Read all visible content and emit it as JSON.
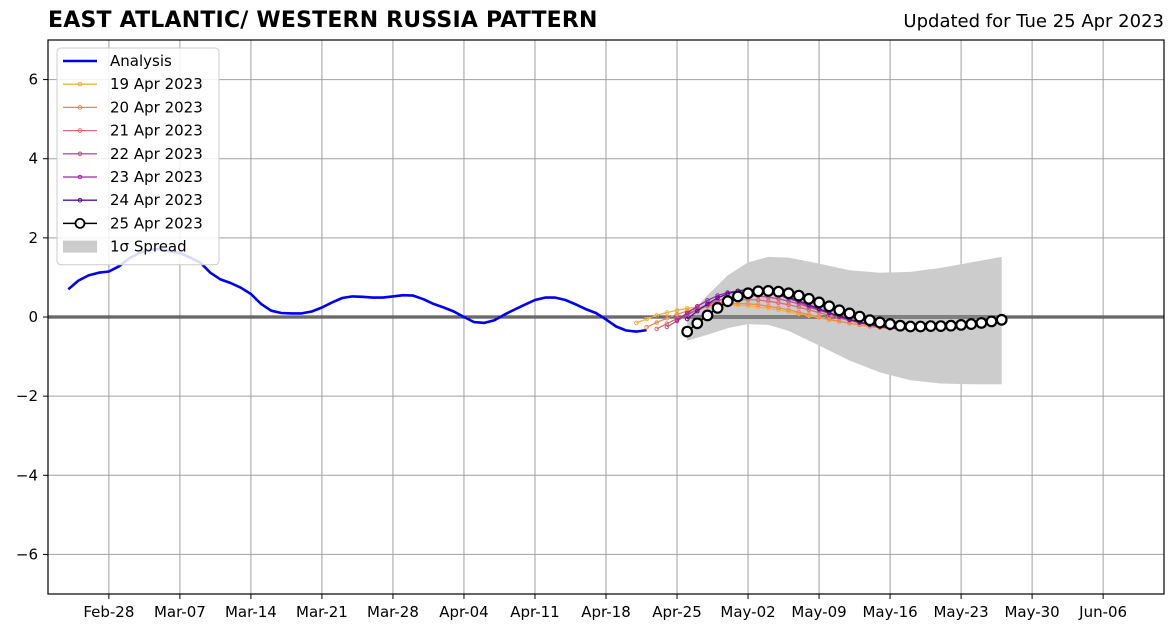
{
  "title": "EAST ATLANTIC/ WESTERN RUSSIA PATTERN",
  "subtitle": "Updated for Tue 25 Apr 2023",
  "chart_data": {
    "type": "line",
    "title": "EAST ATLANTIC/ WESTERN RUSSIA PATTERN",
    "subtitle": "Updated for Tue 25 Apr 2023",
    "xlabel": "",
    "ylabel": "",
    "x_is_date": true,
    "xlim": [
      "2023-02-22",
      "2023-06-12"
    ],
    "ylim": [
      -7,
      7
    ],
    "grid": true,
    "legend_position": "top-left",
    "x_ticks": [
      {
        "date": "2023-02-28",
        "label": "Feb-28"
      },
      {
        "date": "2023-03-07",
        "label": "Mar-07"
      },
      {
        "date": "2023-03-14",
        "label": "Mar-14"
      },
      {
        "date": "2023-03-21",
        "label": "Mar-21"
      },
      {
        "date": "2023-03-28",
        "label": "Mar-28"
      },
      {
        "date": "2023-04-04",
        "label": "Apr-04"
      },
      {
        "date": "2023-04-11",
        "label": "Apr-11"
      },
      {
        "date": "2023-04-18",
        "label": "Apr-18"
      },
      {
        "date": "2023-04-25",
        "label": "Apr-25"
      },
      {
        "date": "2023-05-02",
        "label": "May-02"
      },
      {
        "date": "2023-05-09",
        "label": "May-09"
      },
      {
        "date": "2023-05-16",
        "label": "May-16"
      },
      {
        "date": "2023-05-23",
        "label": "May-23"
      },
      {
        "date": "2023-05-30",
        "label": "May-30"
      },
      {
        "date": "2023-06-06",
        "label": "Jun-06"
      }
    ],
    "y_ticks": [
      {
        "value": -6,
        "label": "−6"
      },
      {
        "value": -4,
        "label": "−4"
      },
      {
        "value": -2,
        "label": "−2"
      },
      {
        "value": 0,
        "label": "0"
      },
      {
        "value": 2,
        "label": "2"
      },
      {
        "value": 4,
        "label": "4"
      },
      {
        "value": 6,
        "label": "6"
      }
    ],
    "analysis": {
      "name": "Analysis",
      "color": "#0000ee",
      "x": [
        "2023-02-24",
        "2023-02-25",
        "2023-02-26",
        "2023-02-27",
        "2023-02-28",
        "2023-03-01",
        "2023-03-02",
        "2023-03-03",
        "2023-03-04",
        "2023-03-05",
        "2023-03-06",
        "2023-03-07",
        "2023-03-08",
        "2023-03-09",
        "2023-03-10",
        "2023-03-11",
        "2023-03-12",
        "2023-03-13",
        "2023-03-14",
        "2023-03-15",
        "2023-03-16",
        "2023-03-17",
        "2023-03-18",
        "2023-03-19",
        "2023-03-20",
        "2023-03-21",
        "2023-03-22",
        "2023-03-23",
        "2023-03-24",
        "2023-03-25",
        "2023-03-26",
        "2023-03-27",
        "2023-03-28",
        "2023-03-29",
        "2023-03-30",
        "2023-03-31",
        "2023-04-01",
        "2023-04-02",
        "2023-04-03",
        "2023-04-04",
        "2023-04-05",
        "2023-04-06",
        "2023-04-07",
        "2023-04-08",
        "2023-04-09",
        "2023-04-10",
        "2023-04-11",
        "2023-04-12",
        "2023-04-13",
        "2023-04-14",
        "2023-04-15",
        "2023-04-16",
        "2023-04-17",
        "2023-04-18",
        "2023-04-19",
        "2023-04-20",
        "2023-04-21",
        "2023-04-22"
      ],
      "y": [
        0.7,
        0.92,
        1.05,
        1.12,
        1.15,
        1.28,
        1.48,
        1.62,
        1.7,
        1.72,
        1.66,
        1.62,
        1.5,
        1.38,
        1.12,
        0.95,
        0.86,
        0.74,
        0.58,
        0.33,
        0.16,
        0.1,
        0.09,
        0.09,
        0.14,
        0.24,
        0.37,
        0.48,
        0.52,
        0.51,
        0.49,
        0.49,
        0.52,
        0.55,
        0.54,
        0.45,
        0.33,
        0.24,
        0.14,
        0.0,
        -0.13,
        -0.15,
        -0.08,
        0.06,
        0.19,
        0.31,
        0.43,
        0.49,
        0.49,
        0.43,
        0.32,
        0.2,
        0.1,
        -0.06,
        -0.24,
        -0.34,
        -0.37,
        -0.33
      ]
    },
    "forecasts": [
      {
        "name": "19 Apr 2023",
        "color": "#f5b041",
        "x": [
          "2023-04-21",
          "2023-04-22",
          "2023-04-23",
          "2023-04-24",
          "2023-04-25",
          "2023-04-26",
          "2023-04-27",
          "2023-04-28",
          "2023-04-29",
          "2023-04-30",
          "2023-05-01",
          "2023-05-02",
          "2023-05-03",
          "2023-05-04",
          "2023-05-05",
          "2023-05-06",
          "2023-05-07",
          "2023-05-08",
          "2023-05-09",
          "2023-05-10",
          "2023-05-11",
          "2023-05-12",
          "2023-05-13",
          "2023-05-14",
          "2023-05-15",
          "2023-05-16"
        ],
        "y": [
          -0.15,
          -0.05,
          0.04,
          0.11,
          0.17,
          0.22,
          0.25,
          0.27,
          0.29,
          0.3,
          0.3,
          0.28,
          0.25,
          0.22,
          0.18,
          0.13,
          0.08,
          0.03,
          -0.02,
          -0.07,
          -0.11,
          -0.15,
          -0.19,
          -0.22,
          -0.24,
          -0.25
        ]
      },
      {
        "name": "20 Apr 2023",
        "color": "#ee8a50",
        "x": [
          "2023-04-22",
          "2023-04-23",
          "2023-04-24",
          "2023-04-25",
          "2023-04-26",
          "2023-04-27",
          "2023-04-28",
          "2023-04-29",
          "2023-04-30",
          "2023-05-01",
          "2023-05-02",
          "2023-05-03",
          "2023-05-04",
          "2023-05-05",
          "2023-05-06",
          "2023-05-07",
          "2023-05-08",
          "2023-05-09",
          "2023-05-10",
          "2023-05-11",
          "2023-05-12",
          "2023-05-13",
          "2023-05-14",
          "2023-05-15",
          "2023-05-16",
          "2023-05-17"
        ],
        "y": [
          -0.26,
          -0.14,
          -0.03,
          0.07,
          0.15,
          0.22,
          0.27,
          0.31,
          0.33,
          0.34,
          0.33,
          0.31,
          0.27,
          0.23,
          0.18,
          0.12,
          0.06,
          0.0,
          -0.06,
          -0.11,
          -0.16,
          -0.2,
          -0.24,
          -0.27,
          -0.29,
          -0.3
        ]
      },
      {
        "name": "21 Apr 2023",
        "color": "#e06a72",
        "x": [
          "2023-04-23",
          "2023-04-24",
          "2023-04-25",
          "2023-04-26",
          "2023-04-27",
          "2023-04-28",
          "2023-04-29",
          "2023-04-30",
          "2023-05-01",
          "2023-05-02",
          "2023-05-03",
          "2023-05-04",
          "2023-05-05",
          "2023-05-06",
          "2023-05-07",
          "2023-05-08",
          "2023-05-09",
          "2023-05-10",
          "2023-05-11",
          "2023-05-12",
          "2023-05-13",
          "2023-05-14",
          "2023-05-15",
          "2023-05-16",
          "2023-05-17",
          "2023-05-18"
        ],
        "y": [
          -0.3,
          -0.17,
          -0.04,
          0.08,
          0.19,
          0.28,
          0.35,
          0.4,
          0.43,
          0.44,
          0.43,
          0.4,
          0.36,
          0.31,
          0.25,
          0.18,
          0.11,
          0.04,
          -0.03,
          -0.09,
          -0.15,
          -0.2,
          -0.24,
          -0.27,
          -0.29,
          -0.3
        ]
      },
      {
        "name": "22 Apr 2023",
        "color": "#c0508a",
        "x": [
          "2023-04-24",
          "2023-04-25",
          "2023-04-26",
          "2023-04-27",
          "2023-04-28",
          "2023-04-29",
          "2023-04-30",
          "2023-05-01",
          "2023-05-02",
          "2023-05-03",
          "2023-05-04",
          "2023-05-05",
          "2023-05-06",
          "2023-05-07",
          "2023-05-08",
          "2023-05-09",
          "2023-05-10",
          "2023-05-11",
          "2023-05-12",
          "2023-05-13",
          "2023-05-14",
          "2023-05-15",
          "2023-05-16",
          "2023-05-17",
          "2023-05-18",
          "2023-05-19"
        ],
        "y": [
          -0.25,
          -0.1,
          0.05,
          0.19,
          0.31,
          0.41,
          0.48,
          0.52,
          0.54,
          0.53,
          0.5,
          0.46,
          0.4,
          0.33,
          0.25,
          0.17,
          0.09,
          0.01,
          -0.06,
          -0.12,
          -0.18,
          -0.23,
          -0.26,
          -0.28,
          -0.29,
          -0.29
        ]
      },
      {
        "name": "23 Apr 2023",
        "color": "#9a2aa0",
        "x": [
          "2023-04-25",
          "2023-04-26",
          "2023-04-27",
          "2023-04-28",
          "2023-04-29",
          "2023-04-30",
          "2023-05-01",
          "2023-05-02",
          "2023-05-03",
          "2023-05-04",
          "2023-05-05",
          "2023-05-06",
          "2023-05-07",
          "2023-05-08",
          "2023-05-09",
          "2023-05-10",
          "2023-05-11",
          "2023-05-12",
          "2023-05-13",
          "2023-05-14",
          "2023-05-15",
          "2023-05-16",
          "2023-05-17",
          "2023-05-18",
          "2023-05-19",
          "2023-05-20"
        ],
        "y": [
          -0.08,
          0.1,
          0.27,
          0.42,
          0.54,
          0.62,
          0.66,
          0.67,
          0.65,
          0.61,
          0.55,
          0.47,
          0.38,
          0.28,
          0.19,
          0.1,
          0.01,
          -0.07,
          -0.14,
          -0.2,
          -0.25,
          -0.28,
          -0.3,
          -0.3,
          -0.29,
          -0.28
        ]
      },
      {
        "name": "24 Apr 2023",
        "color": "#5a1090",
        "x": [
          "2023-04-26",
          "2023-04-27",
          "2023-04-28",
          "2023-04-29",
          "2023-04-30",
          "2023-05-01",
          "2023-05-02",
          "2023-05-03",
          "2023-05-04",
          "2023-05-05",
          "2023-05-06",
          "2023-05-07",
          "2023-05-08",
          "2023-05-09",
          "2023-05-10",
          "2023-05-11",
          "2023-05-12",
          "2023-05-13",
          "2023-05-14",
          "2023-05-15",
          "2023-05-16",
          "2023-05-17",
          "2023-05-18",
          "2023-05-19",
          "2023-05-20",
          "2023-05-21"
        ],
        "y": [
          -0.05,
          0.15,
          0.33,
          0.48,
          0.59,
          0.66,
          0.69,
          0.68,
          0.64,
          0.58,
          0.5,
          0.41,
          0.31,
          0.21,
          0.11,
          0.02,
          -0.06,
          -0.13,
          -0.19,
          -0.24,
          -0.27,
          -0.29,
          -0.3,
          -0.29,
          -0.28,
          -0.26
        ]
      }
    ],
    "current_forecast": {
      "name": "25 Apr 2023",
      "color": "#000000",
      "x": [
        "2023-04-26",
        "2023-04-27",
        "2023-04-28",
        "2023-04-29",
        "2023-04-30",
        "2023-05-01",
        "2023-05-02",
        "2023-05-03",
        "2023-05-04",
        "2023-05-05",
        "2023-05-06",
        "2023-05-07",
        "2023-05-08",
        "2023-05-09",
        "2023-05-10",
        "2023-05-11",
        "2023-05-12",
        "2023-05-13",
        "2023-05-14",
        "2023-05-15",
        "2023-05-16",
        "2023-05-17",
        "2023-05-18",
        "2023-05-19",
        "2023-05-20",
        "2023-05-21",
        "2023-05-22",
        "2023-05-23",
        "2023-05-24",
        "2023-05-25",
        "2023-05-26",
        "2023-05-27"
      ],
      "y": [
        -0.37,
        -0.16,
        0.04,
        0.23,
        0.4,
        0.52,
        0.6,
        0.65,
        0.66,
        0.64,
        0.6,
        0.54,
        0.46,
        0.37,
        0.27,
        0.17,
        0.09,
        0.01,
        -0.08,
        -0.14,
        -0.18,
        -0.22,
        -0.24,
        -0.24,
        -0.23,
        -0.23,
        -0.22,
        -0.2,
        -0.18,
        -0.15,
        -0.11,
        -0.07
      ]
    },
    "spread": {
      "name": "1σ Spread",
      "color": "#cccccc",
      "x": [
        "2023-04-26",
        "2023-04-28",
        "2023-04-30",
        "2023-05-02",
        "2023-05-04",
        "2023-05-06",
        "2023-05-09",
        "2023-05-12",
        "2023-05-15",
        "2023-05-18",
        "2023-05-21",
        "2023-05-24",
        "2023-05-27"
      ],
      "upper": [
        0.0,
        0.55,
        1.05,
        1.38,
        1.52,
        1.5,
        1.35,
        1.18,
        1.12,
        1.14,
        1.24,
        1.38,
        1.52
      ],
      "lower": [
        -0.6,
        -0.45,
        -0.28,
        -0.18,
        -0.2,
        -0.35,
        -0.72,
        -1.1,
        -1.4,
        -1.6,
        -1.68,
        -1.7,
        -1.7
      ]
    }
  },
  "legend": {
    "items": [
      {
        "label": "Analysis",
        "kind": "line",
        "color": "#0000ee"
      },
      {
        "label": "19 Apr 2023",
        "kind": "marker-line",
        "color": "#f5b041"
      },
      {
        "label": "20 Apr 2023",
        "kind": "marker-line",
        "color": "#ee8a50"
      },
      {
        "label": "21 Apr 2023",
        "kind": "marker-line",
        "color": "#e06a72"
      },
      {
        "label": "22 Apr 2023",
        "kind": "marker-line",
        "color": "#c0508a"
      },
      {
        "label": "23 Apr 2023",
        "kind": "marker-line",
        "color": "#9a2aa0"
      },
      {
        "label": "24 Apr 2023",
        "kind": "marker-line",
        "color": "#5a1090"
      },
      {
        "label": "25 Apr 2023",
        "kind": "open-circle-line",
        "color": "#000000"
      },
      {
        "label": "1σ Spread",
        "kind": "patch",
        "color": "#cccccc"
      }
    ]
  }
}
